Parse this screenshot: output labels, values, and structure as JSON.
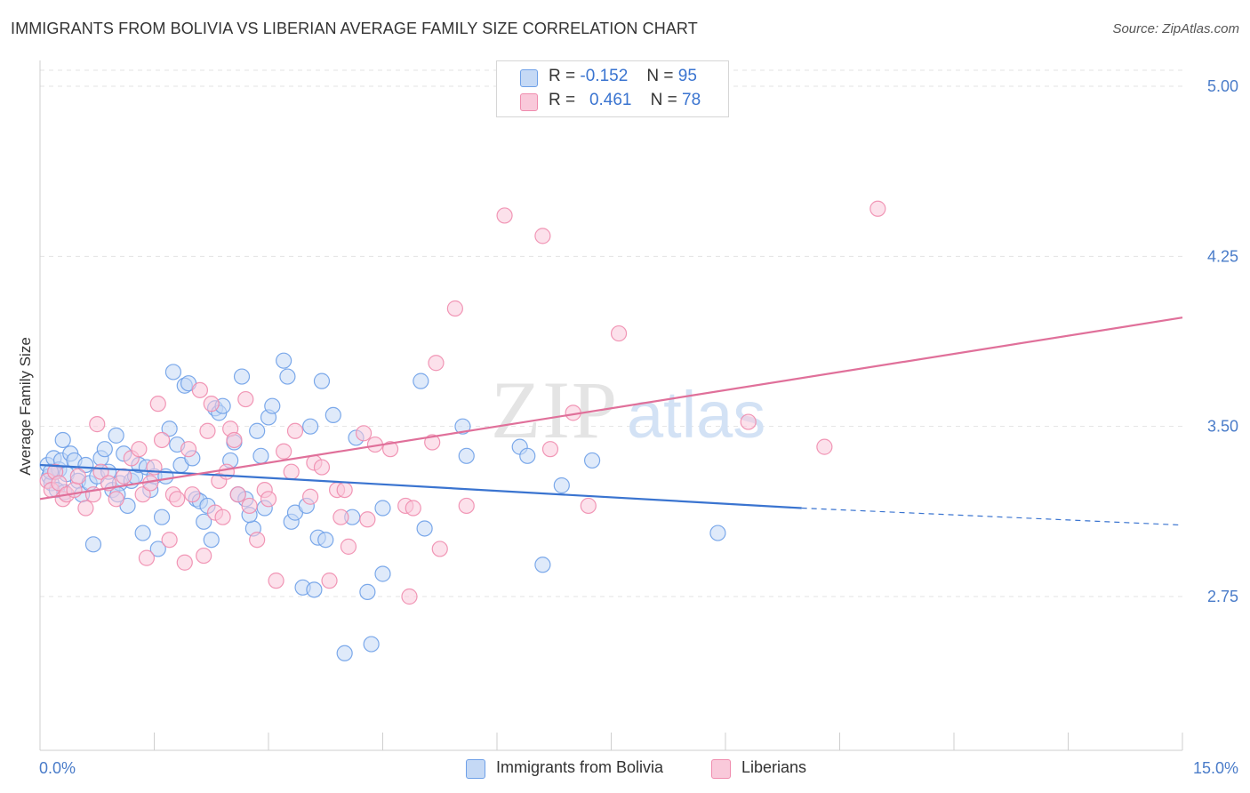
{
  "title": "IMMIGRANTS FROM BOLIVIA VS LIBERIAN AVERAGE FAMILY SIZE CORRELATION CHART",
  "source": "Source: ZipAtlas.com",
  "watermark": {
    "zip": "ZIP",
    "atlas": "atlas"
  },
  "legend": {
    "rows": [
      {
        "r_label": "R =",
        "r_value": "-0.152",
        "n_label": "N =",
        "n_value": "95"
      },
      {
        "r_label": "R =",
        "r_value": "0.461",
        "n_label": "N =",
        "n_value": "78"
      }
    ]
  },
  "chart_data": {
    "type": "scatter",
    "ylabel": "Average Family Size",
    "x_tick_labels": [
      "0.0%",
      "15.0%"
    ],
    "y_tick_labels": [
      "5.00",
      "4.25",
      "3.50",
      "2.75"
    ],
    "y_ticks": [
      5.0,
      4.25,
      3.5,
      2.75
    ],
    "xlim": [
      0,
      15
    ],
    "ylim": [
      2.2,
      5.1
    ],
    "grid": true,
    "legend_position": "top-center",
    "series": [
      {
        "name": "Immigrants from Bolivia",
        "color": "#6ea0e8",
        "fill": "#c5d9f5",
        "trend": {
          "x": [
            0,
            10.0
          ],
          "y": [
            3.33,
            3.14
          ],
          "dashed_to": [
            15,
            3.065
          ],
          "color": "#3a74d0"
        },
        "points": [
          [
            0.1,
            3.33
          ],
          [
            0.12,
            3.28
          ],
          [
            0.15,
            3.25
          ],
          [
            0.18,
            3.36
          ],
          [
            0.2,
            3.3
          ],
          [
            0.22,
            3.22
          ],
          [
            0.25,
            3.31
          ],
          [
            0.28,
            3.35
          ],
          [
            0.3,
            3.44
          ],
          [
            0.35,
            3.29
          ],
          [
            0.4,
            3.38
          ],
          [
            0.45,
            3.35
          ],
          [
            0.5,
            3.26
          ],
          [
            0.55,
            3.2
          ],
          [
            0.6,
            3.33
          ],
          [
            0.65,
            3.25
          ],
          [
            0.7,
            2.98
          ],
          [
            0.75,
            3.28
          ],
          [
            0.8,
            3.36
          ],
          [
            0.85,
            3.4
          ],
          [
            0.9,
            3.3
          ],
          [
            0.95,
            3.22
          ],
          [
            1.0,
            3.46
          ],
          [
            1.05,
            3.25
          ],
          [
            1.1,
            3.38
          ],
          [
            1.15,
            3.15
          ],
          [
            1.2,
            3.26
          ],
          [
            1.25,
            3.28
          ],
          [
            1.3,
            3.33
          ],
          [
            1.35,
            3.03
          ],
          [
            1.4,
            3.32
          ],
          [
            1.45,
            3.22
          ],
          [
            1.5,
            3.28
          ],
          [
            1.55,
            2.96
          ],
          [
            1.6,
            3.1
          ],
          [
            1.65,
            3.28
          ],
          [
            1.7,
            3.49
          ],
          [
            1.75,
            3.74
          ],
          [
            1.8,
            3.42
          ],
          [
            1.85,
            3.33
          ],
          [
            1.9,
            3.68
          ],
          [
            1.95,
            3.69
          ],
          [
            2.0,
            3.36
          ],
          [
            2.05,
            3.18
          ],
          [
            2.1,
            3.17
          ],
          [
            2.15,
            3.08
          ],
          [
            2.2,
            3.15
          ],
          [
            2.25,
            3.0
          ],
          [
            2.3,
            3.58
          ],
          [
            2.35,
            3.56
          ],
          [
            2.4,
            3.59
          ],
          [
            2.5,
            3.35
          ],
          [
            2.55,
            3.43
          ],
          [
            2.6,
            3.2
          ],
          [
            2.65,
            3.72
          ],
          [
            2.7,
            3.18
          ],
          [
            2.8,
            3.05
          ],
          [
            2.85,
            3.48
          ],
          [
            2.9,
            3.37
          ],
          [
            2.95,
            3.14
          ],
          [
            3.0,
            3.54
          ],
          [
            3.05,
            3.59
          ],
          [
            3.2,
            3.79
          ],
          [
            3.25,
            3.72
          ],
          [
            3.3,
            3.08
          ],
          [
            3.35,
            3.12
          ],
          [
            3.45,
            2.79
          ],
          [
            3.5,
            3.15
          ],
          [
            3.55,
            3.5
          ],
          [
            3.6,
            2.78
          ],
          [
            3.65,
            3.01
          ],
          [
            3.7,
            3.7
          ],
          [
            3.75,
            3.0
          ],
          [
            3.85,
            3.55
          ],
          [
            4.0,
            2.5
          ],
          [
            4.15,
            3.45
          ],
          [
            4.1,
            3.1
          ],
          [
            4.3,
            2.77
          ],
          [
            4.35,
            2.54
          ],
          [
            4.5,
            3.14
          ],
          [
            4.5,
            2.85
          ],
          [
            5.0,
            3.7
          ],
          [
            5.05,
            3.05
          ],
          [
            5.6,
            3.37
          ],
          [
            5.55,
            3.5
          ],
          [
            6.3,
            3.41
          ],
          [
            6.4,
            3.37
          ],
          [
            6.6,
            2.89
          ],
          [
            6.85,
            3.24
          ],
          [
            7.25,
            3.35
          ],
          [
            8.9,
            3.03
          ],
          [
            0.14,
            3.3
          ],
          [
            0.32,
            3.21
          ],
          [
            1.02,
            3.2
          ],
          [
            2.75,
            3.11
          ]
        ]
      },
      {
        "name": "Liberians",
        "color": "#f08cae",
        "fill": "#f9c9da",
        "trend": {
          "x": [
            0,
            15
          ],
          "y": [
            3.18,
            3.98
          ],
          "color": "#e0709a"
        },
        "points": [
          [
            0.1,
            3.26
          ],
          [
            0.15,
            3.22
          ],
          [
            0.2,
            3.3
          ],
          [
            0.25,
            3.25
          ],
          [
            0.3,
            3.18
          ],
          [
            0.35,
            3.2
          ],
          [
            0.45,
            3.22
          ],
          [
            0.5,
            3.28
          ],
          [
            0.6,
            3.14
          ],
          [
            0.7,
            3.2
          ],
          [
            0.75,
            3.51
          ],
          [
            0.8,
            3.3
          ],
          [
            0.9,
            3.25
          ],
          [
            1.0,
            3.18
          ],
          [
            1.1,
            3.28
          ],
          [
            1.2,
            3.36
          ],
          [
            1.3,
            3.4
          ],
          [
            1.35,
            3.2
          ],
          [
            1.4,
            2.92
          ],
          [
            1.5,
            3.32
          ],
          [
            1.45,
            3.25
          ],
          [
            1.55,
            3.6
          ],
          [
            1.6,
            3.44
          ],
          [
            1.7,
            3.0
          ],
          [
            1.75,
            3.2
          ],
          [
            1.8,
            3.18
          ],
          [
            1.9,
            2.9
          ],
          [
            1.95,
            3.4
          ],
          [
            2.0,
            3.2
          ],
          [
            2.1,
            3.66
          ],
          [
            2.15,
            2.93
          ],
          [
            2.2,
            3.48
          ],
          [
            2.25,
            3.6
          ],
          [
            2.3,
            3.12
          ],
          [
            2.35,
            3.26
          ],
          [
            2.4,
            3.1
          ],
          [
            2.45,
            3.3
          ],
          [
            2.5,
            3.49
          ],
          [
            2.55,
            3.44
          ],
          [
            2.6,
            3.2
          ],
          [
            2.7,
            3.62
          ],
          [
            2.75,
            3.15
          ],
          [
            2.85,
            3.0
          ],
          [
            2.95,
            3.22
          ],
          [
            3.0,
            3.18
          ],
          [
            3.1,
            2.82
          ],
          [
            3.2,
            3.39
          ],
          [
            3.3,
            3.3
          ],
          [
            3.35,
            3.48
          ],
          [
            3.55,
            3.19
          ],
          [
            3.6,
            3.34
          ],
          [
            3.7,
            3.32
          ],
          [
            3.8,
            2.82
          ],
          [
            3.9,
            3.22
          ],
          [
            3.95,
            3.1
          ],
          [
            4.0,
            3.22
          ],
          [
            4.05,
            2.97
          ],
          [
            4.25,
            3.47
          ],
          [
            4.3,
            3.09
          ],
          [
            4.4,
            3.42
          ],
          [
            4.6,
            3.4
          ],
          [
            4.8,
            3.15
          ],
          [
            4.9,
            3.14
          ],
          [
            4.85,
            2.75
          ],
          [
            5.15,
            3.43
          ],
          [
            5.2,
            3.78
          ],
          [
            5.25,
            2.96
          ],
          [
            5.45,
            4.02
          ],
          [
            5.6,
            3.15
          ],
          [
            6.1,
            4.43
          ],
          [
            6.6,
            4.34
          ],
          [
            6.7,
            3.4
          ],
          [
            7.0,
            3.56
          ],
          [
            7.2,
            3.15
          ],
          [
            7.6,
            3.91
          ],
          [
            9.3,
            3.52
          ],
          [
            10.3,
            3.41
          ],
          [
            11.0,
            4.46
          ]
        ]
      }
    ]
  }
}
